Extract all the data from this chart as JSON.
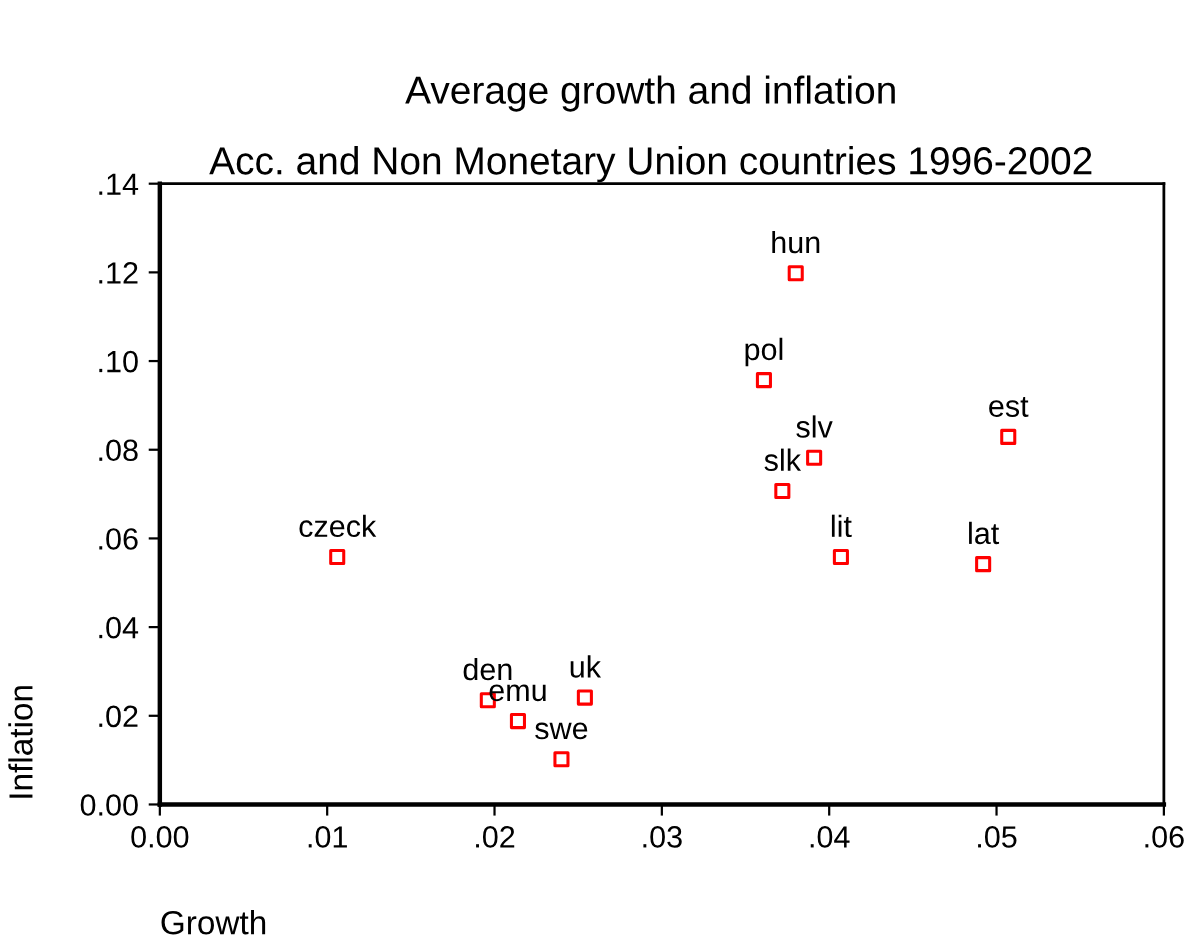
{
  "chart_data": {
    "type": "scatter",
    "title": "Average growth and inflation",
    "subtitle": "Acc. and Non Monetary Union countries 1996-2002",
    "xlabel": "Growth",
    "ylabel": "Inflation",
    "x": [
      0.0106,
      0.0196,
      0.0214,
      0.024,
      0.0254,
      0.038,
      0.0361,
      0.0507,
      0.0391,
      0.0372,
      0.0407,
      0.0492
    ],
    "series": [
      {
        "color": "#ff0000",
        "values": [
          0.0558,
          0.0235,
          0.0188,
          0.0102,
          0.0241,
          0.1198,
          0.0957,
          0.0829,
          0.0782,
          0.0707,
          0.0558,
          0.0542
        ]
      }
    ],
    "marker": "square",
    "grid": false,
    "legend": false,
    "annotations": [
      {
        "text": "czeck",
        "x": 0.0106,
        "y": 0.0558
      },
      {
        "text": "den",
        "x": 0.0196,
        "y": 0.0235
      },
      {
        "text": "emu",
        "x": 0.0214,
        "y": 0.0188
      },
      {
        "text": "swe",
        "x": 0.024,
        "y": 0.0102
      },
      {
        "text": "uk",
        "x": 0.0254,
        "y": 0.0241
      },
      {
        "text": "hun",
        "x": 0.038,
        "y": 0.1198
      },
      {
        "text": "pol",
        "x": 0.0361,
        "y": 0.0957
      },
      {
        "text": "est",
        "x": 0.0507,
        "y": 0.0829
      },
      {
        "text": "slv",
        "x": 0.0391,
        "y": 0.0782
      },
      {
        "text": "slk",
        "x": 0.0372,
        "y": 0.0707
      },
      {
        "text": "lit",
        "x": 0.0407,
        "y": 0.0558
      },
      {
        "text": "lat",
        "x": 0.0492,
        "y": 0.0542
      }
    ],
    "xlim": [
      0,
      0.06
    ],
    "ylim": [
      0,
      0.14
    ],
    "xticks": [
      {
        "value": 0,
        "label": "0.00"
      },
      {
        "value": 0.01,
        "label": ".01"
      },
      {
        "value": 0.02,
        "label": ".02"
      },
      {
        "value": 0.03,
        "label": ".03"
      },
      {
        "value": 0.04,
        "label": ".04"
      },
      {
        "value": 0.05,
        "label": ".05"
      },
      {
        "value": 0.06,
        "label": ".06"
      }
    ],
    "yticks": [
      {
        "value": 0,
        "label": "0.00"
      },
      {
        "value": 0.02,
        "label": ".02"
      },
      {
        "value": 0.04,
        "label": ".04"
      },
      {
        "value": 0.06,
        "label": ".06"
      },
      {
        "value": 0.08,
        "label": ".08"
      },
      {
        "value": 0.1,
        "label": ".10"
      },
      {
        "value": 0.12,
        "label": ".12"
      },
      {
        "value": 0.14,
        "label": ".14"
      }
    ]
  }
}
